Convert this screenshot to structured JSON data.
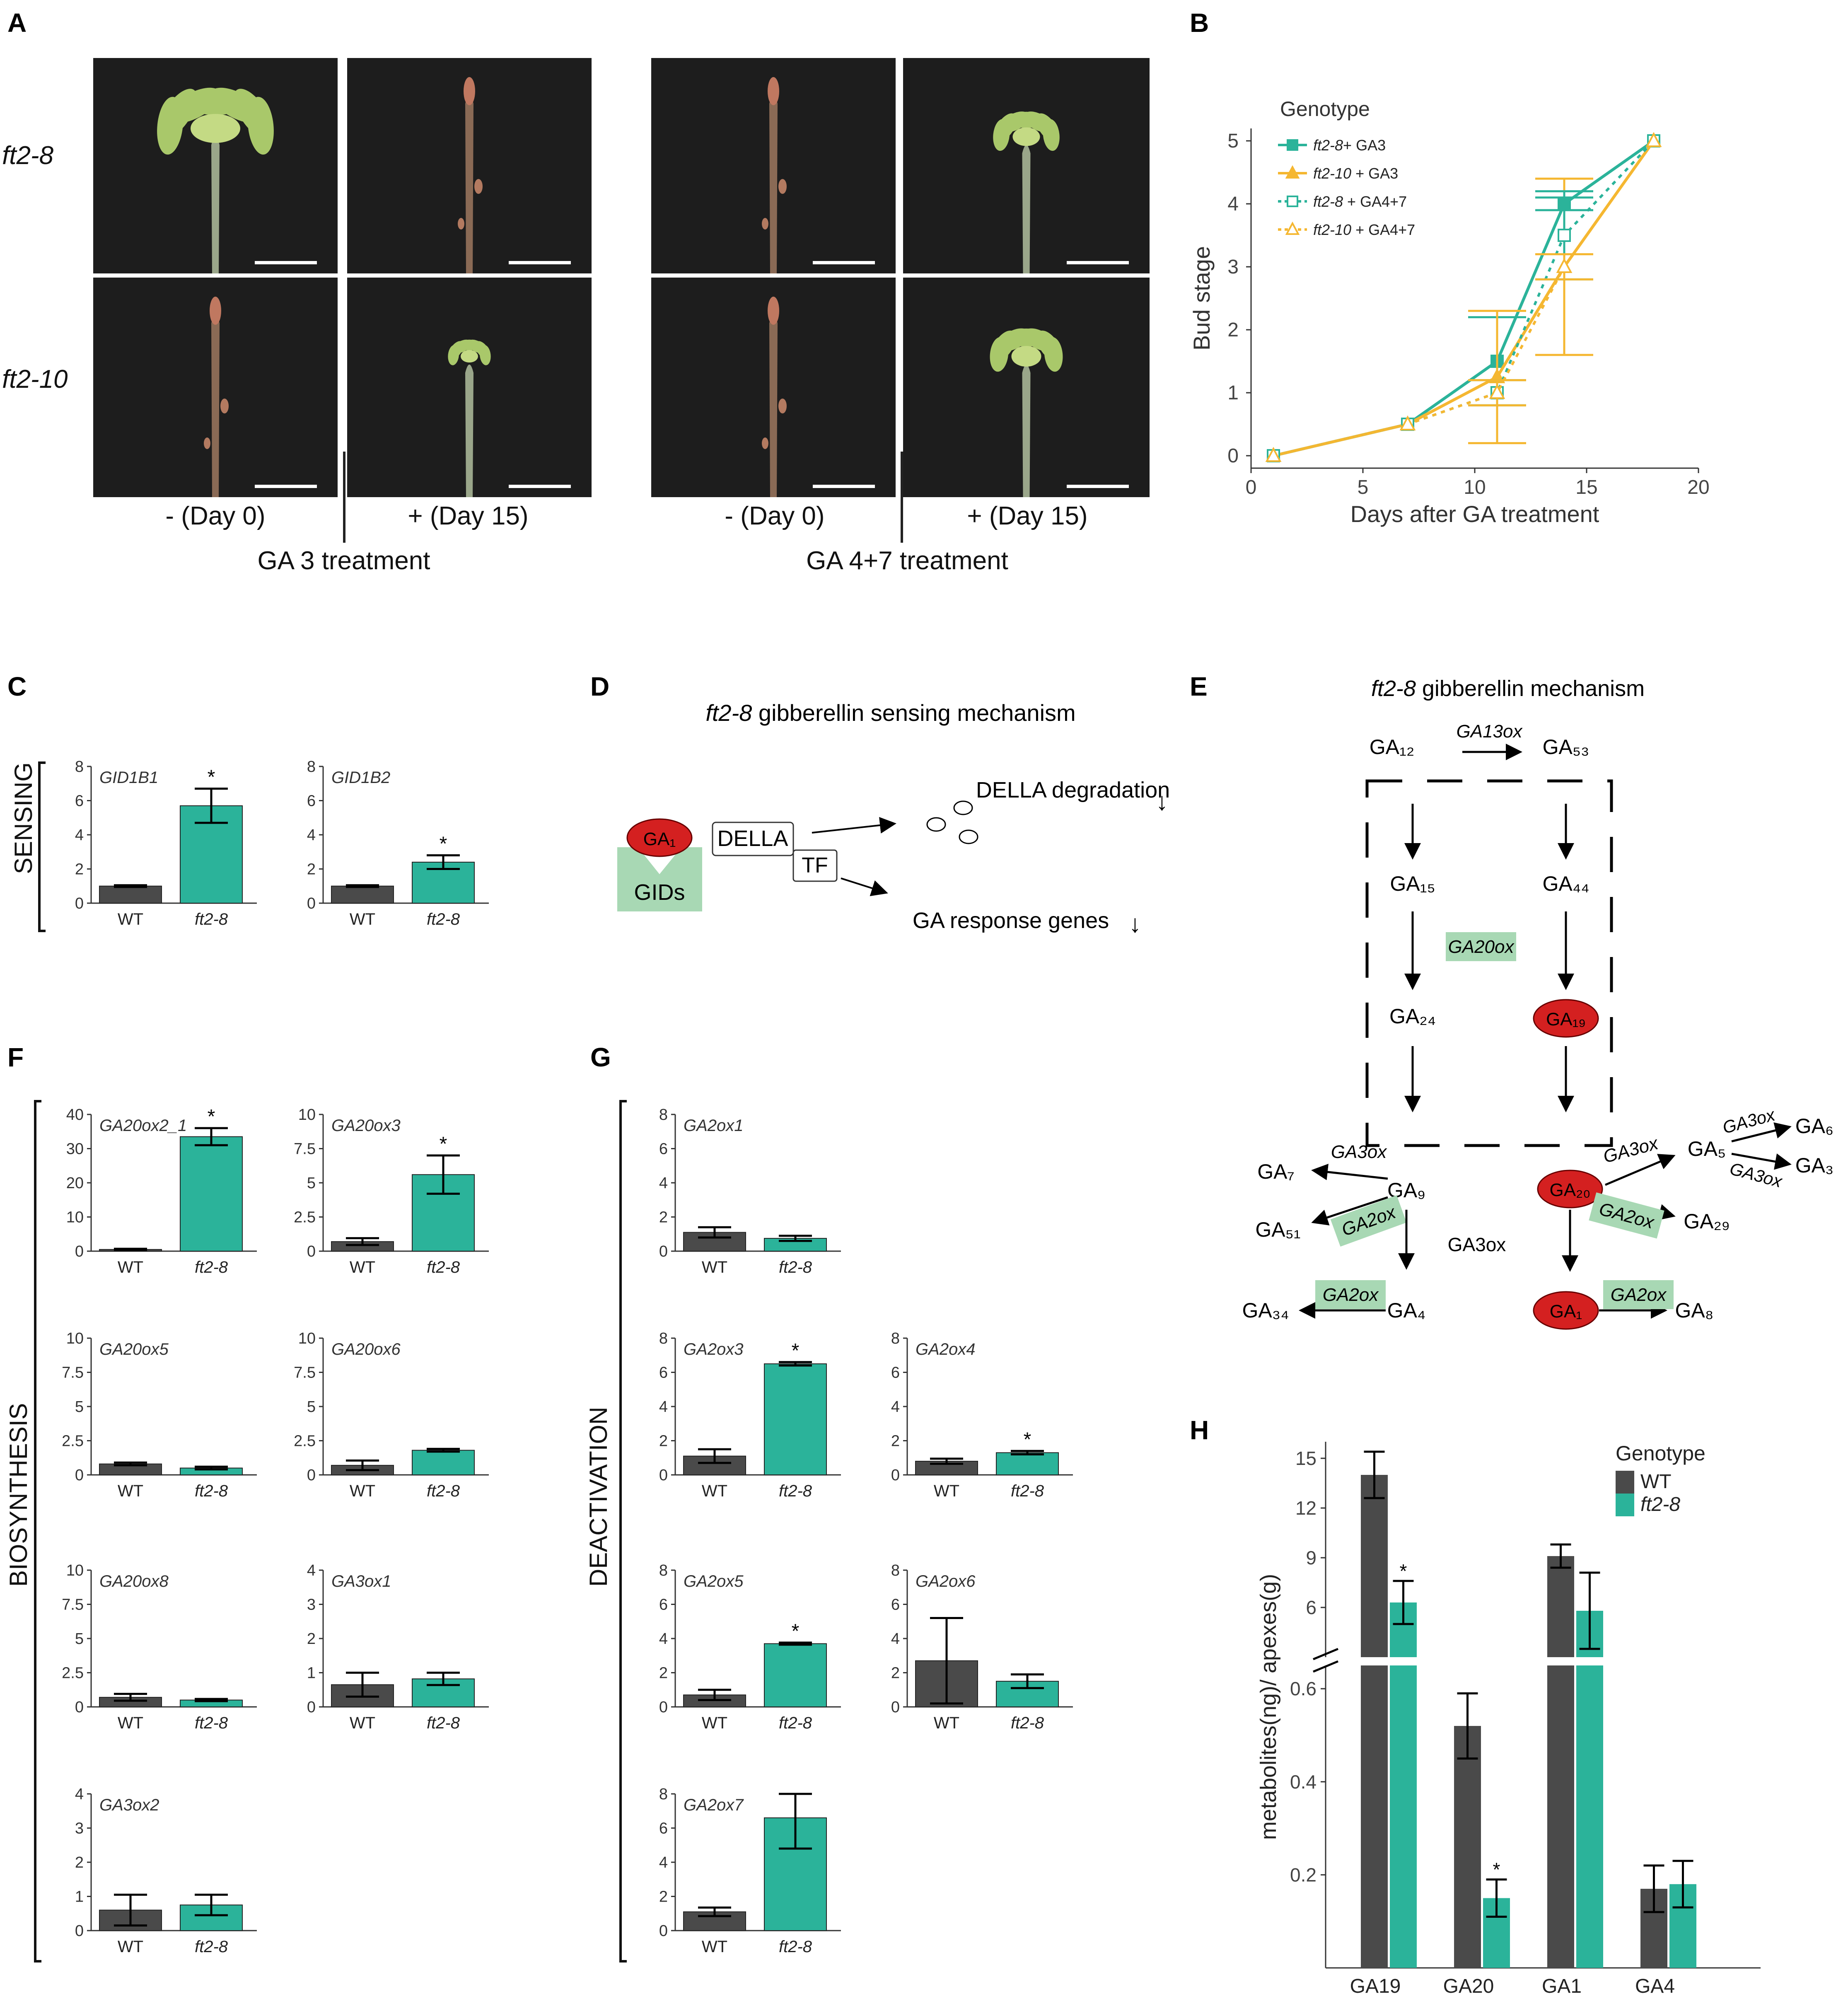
{
  "panels": {
    "A": "A",
    "B": "B",
    "C": "C",
    "D": "D",
    "E": "E",
    "F": "F",
    "G": "G",
    "H": "H"
  },
  "panelA": {
    "rows": [
      "ft2-8",
      "ft2-10"
    ],
    "conditions": [
      "- (Day 0)",
      "+ (Day 15)",
      "- (Day 0)",
      "+ (Day 15)"
    ],
    "treatments": [
      "GA 3 treatment",
      "GA 4+7 treatment"
    ]
  },
  "colors": {
    "wt": "#4a4a4a",
    "mut": "#2bb39a",
    "orange": "#f5b731",
    "red": "#d42020",
    "green_box": "#a8d8b4"
  },
  "chart_data": [
    {
      "panel": "B",
      "type": "line",
      "xlabel": "Days after GA treatment",
      "ylabel": "Bud stage",
      "xlim": [
        0,
        20
      ],
      "ylim": [
        0,
        5
      ],
      "xticks": [
        0,
        5,
        10,
        15,
        20
      ],
      "yticks": [
        0,
        1,
        2,
        3,
        4,
        5
      ],
      "legend_title": "Genotype",
      "legend_position": "top-left",
      "series": [
        {
          "name": "ft2-8+ GA3",
          "label_italic": "ft2-8",
          "label_rest": "+ GA3",
          "color": "#2bb39a",
          "marker": "square-filled",
          "dash": false,
          "x": [
            1,
            7,
            11,
            14,
            18
          ],
          "y": [
            0,
            0.5,
            1.5,
            4,
            5
          ],
          "err": [
            0,
            0,
            0.7,
            0.1,
            0
          ]
        },
        {
          "name": "ft2-10 + GA3",
          "label_italic": "ft2-10",
          "label_rest": " + GA3",
          "color": "#f5b731",
          "marker": "triangle-filled",
          "dash": false,
          "x": [
            1,
            7,
            11,
            14,
            18
          ],
          "y": [
            0,
            0.5,
            1.25,
            3,
            5
          ],
          "err": [
            0,
            0,
            1.05,
            1.4,
            0
          ]
        },
        {
          "name": "ft2-8 + GA4+7",
          "label_italic": "ft2-8",
          "label_rest": " + GA4+7",
          "color": "#2bb39a",
          "marker": "square-open",
          "dash": true,
          "x": [
            1,
            7,
            11,
            14,
            18
          ],
          "y": [
            0,
            0.5,
            1,
            3.5,
            5
          ],
          "err": [
            0,
            0,
            0.2,
            0.7,
            0
          ]
        },
        {
          "name": "ft2-10 + GA4+7",
          "label_italic": "ft2-10",
          "label_rest": " + GA4+7",
          "color": "#f5b731",
          "marker": "triangle-open",
          "dash": true,
          "x": [
            1,
            7,
            11,
            14,
            18
          ],
          "y": [
            0,
            0.5,
            1,
            3,
            5
          ],
          "err": [
            0,
            0,
            0.2,
            0.2,
            0
          ]
        }
      ]
    },
    {
      "panel": "C",
      "group": "SENSING",
      "type": "bar",
      "title": "GID1B1",
      "categories": [
        "WT",
        "ft2-8"
      ],
      "values": [
        1.0,
        5.7
      ],
      "err": [
        0.05,
        1.0
      ],
      "star": [
        false,
        true
      ],
      "ylim": [
        0,
        8
      ],
      "yticks": [
        0,
        2,
        4,
        6,
        8
      ]
    },
    {
      "panel": "C",
      "group": "SENSING",
      "type": "bar",
      "title": "GID1B2",
      "categories": [
        "WT",
        "ft2-8"
      ],
      "values": [
        1.0,
        2.4
      ],
      "err": [
        0.05,
        0.4
      ],
      "star": [
        false,
        true
      ],
      "ylim": [
        0,
        8
      ],
      "yticks": [
        0,
        2,
        4,
        6,
        8
      ]
    },
    {
      "panel": "F",
      "group": "BIOSYNTHESIS",
      "type": "bar",
      "title": "GA20ox2_1",
      "categories": [
        "WT",
        "ft2-8"
      ],
      "values": [
        0.5,
        33.5
      ],
      "err": [
        0.2,
        2.5
      ],
      "star": [
        false,
        true
      ],
      "ylim": [
        0,
        40
      ],
      "yticks": [
        0,
        10,
        20,
        30,
        40
      ]
    },
    {
      "panel": "F",
      "group": "BIOSYNTHESIS",
      "type": "bar",
      "title": "GA20ox3",
      "categories": [
        "WT",
        "ft2-8"
      ],
      "values": [
        0.7,
        5.6
      ],
      "err": [
        0.25,
        1.4
      ],
      "star": [
        false,
        true
      ],
      "ylim": [
        0,
        10
      ],
      "yticks": [
        0,
        2.5,
        5,
        7.5,
        10
      ]
    },
    {
      "panel": "F",
      "group": "BIOSYNTHESIS",
      "type": "bar",
      "title": "GA20ox5",
      "categories": [
        "WT",
        "ft2-8"
      ],
      "values": [
        0.8,
        0.5
      ],
      "err": [
        0.1,
        0.1
      ],
      "star": [
        false,
        false
      ],
      "ylim": [
        0,
        10
      ],
      "yticks": [
        0,
        2.5,
        5,
        7.5,
        10
      ]
    },
    {
      "panel": "F",
      "group": "BIOSYNTHESIS",
      "type": "bar",
      "title": "GA20ox6",
      "categories": [
        "WT",
        "ft2-8"
      ],
      "values": [
        0.7,
        1.8
      ],
      "err": [
        0.35,
        0.1
      ],
      "star": [
        false,
        false
      ],
      "ylim": [
        0,
        10
      ],
      "yticks": [
        0,
        2.5,
        5,
        7.5,
        10
      ]
    },
    {
      "panel": "F",
      "group": "BIOSYNTHESIS",
      "type": "bar",
      "title": "GA20ox8",
      "categories": [
        "WT",
        "ft2-8"
      ],
      "values": [
        0.7,
        0.5
      ],
      "err": [
        0.25,
        0.08
      ],
      "star": [
        false,
        false
      ],
      "ylim": [
        0,
        10
      ],
      "yticks": [
        0,
        2.5,
        5,
        7.5,
        10
      ]
    },
    {
      "panel": "F",
      "group": "BIOSYNTHESIS",
      "type": "bar",
      "title": "GA3ox1",
      "categories": [
        "WT",
        "ft2-8"
      ],
      "values": [
        0.65,
        0.82
      ],
      "err": [
        0.35,
        0.18
      ],
      "star": [
        false,
        false
      ],
      "ylim": [
        0,
        4
      ],
      "yticks": [
        0,
        1,
        2,
        3,
        4
      ]
    },
    {
      "panel": "F",
      "group": "BIOSYNTHESIS",
      "type": "bar",
      "title": "GA3ox2",
      "categories": [
        "WT",
        "ft2-8"
      ],
      "values": [
        0.6,
        0.75
      ],
      "err": [
        0.45,
        0.3
      ],
      "star": [
        false,
        false
      ],
      "ylim": [
        0,
        4
      ],
      "yticks": [
        0,
        1,
        2,
        3,
        4
      ]
    },
    {
      "panel": "G",
      "group": "DEACTIVATION",
      "type": "bar",
      "title": "GA2ox1",
      "categories": [
        "WT",
        "ft2-8"
      ],
      "values": [
        1.1,
        0.75
      ],
      "err": [
        0.3,
        0.15
      ],
      "star": [
        false,
        false
      ],
      "ylim": [
        0,
        8
      ],
      "yticks": [
        0,
        2,
        4,
        6,
        8
      ]
    },
    {
      "panel": "G",
      "group": "DEACTIVATION",
      "type": "bar",
      "title": "GA2ox3",
      "categories": [
        "WT",
        "ft2-8"
      ],
      "values": [
        1.1,
        6.5
      ],
      "err": [
        0.4,
        0.1
      ],
      "star": [
        false,
        true
      ],
      "ylim": [
        0,
        8
      ],
      "yticks": [
        0,
        2,
        4,
        6,
        8
      ]
    },
    {
      "panel": "G",
      "group": "DEACTIVATION",
      "type": "bar",
      "title": "GA2ox4",
      "categories": [
        "WT",
        "ft2-8"
      ],
      "values": [
        0.8,
        1.3
      ],
      "err": [
        0.15,
        0.1
      ],
      "star": [
        false,
        true
      ],
      "ylim": [
        0,
        8
      ],
      "yticks": [
        0,
        2,
        4,
        6,
        8
      ]
    },
    {
      "panel": "G",
      "group": "DEACTIVATION",
      "type": "bar",
      "title": "GA2ox5",
      "categories": [
        "WT",
        "ft2-8"
      ],
      "values": [
        0.7,
        3.7
      ],
      "err": [
        0.3,
        0.06
      ],
      "star": [
        false,
        true
      ],
      "ylim": [
        0,
        8
      ],
      "yticks": [
        0,
        2,
        4,
        6,
        8
      ]
    },
    {
      "panel": "G",
      "group": "DEACTIVATION",
      "type": "bar",
      "title": "GA2ox6",
      "categories": [
        "WT",
        "ft2-8"
      ],
      "values": [
        2.7,
        1.5
      ],
      "err": [
        2.5,
        0.4
      ],
      "star": [
        false,
        false
      ],
      "ylim": [
        0,
        8
      ],
      "yticks": [
        0,
        2,
        4,
        6,
        8
      ]
    },
    {
      "panel": "G",
      "group": "DEACTIVATION",
      "type": "bar",
      "title": "GA2ox7",
      "categories": [
        "WT",
        "ft2-8"
      ],
      "values": [
        1.1,
        6.6
      ],
      "err": [
        0.25,
        1.8
      ],
      "star": [
        false,
        false
      ],
      "ylim": [
        0,
        8
      ],
      "yticks": [
        0,
        2,
        4,
        6,
        8
      ]
    },
    {
      "panel": "H",
      "type": "bar",
      "ylabel": "metabolites(ng)/ apexes(g)",
      "categories": [
        "GA19",
        "GA20",
        "GA1",
        "GA4"
      ],
      "legend_title": "Genotype",
      "legend_position": "top-right",
      "series": [
        {
          "name": "WT",
          "values": [
            14.0,
            0.52,
            9.1,
            0.17
          ],
          "err": [
            1.4,
            0.07,
            0.7,
            0.05
          ],
          "star": [
            false,
            false,
            false,
            false
          ]
        },
        {
          "name": "ft2-8",
          "values": [
            6.3,
            0.15,
            5.8,
            0.18
          ],
          "err": [
            1.3,
            0.04,
            2.3,
            0.05
          ],
          "star": [
            true,
            true,
            false,
            false
          ]
        }
      ],
      "axis_break": true,
      "upper_ylim": [
        3,
        16
      ],
      "upper_yticks": [
        6,
        9,
        12,
        15
      ],
      "lower_ylim": [
        0,
        0.65
      ],
      "lower_yticks": [
        0.2,
        0.4,
        0.6
      ]
    }
  ],
  "groupLabels": {
    "sensing": "SENSING",
    "biosynthesis": "BIOSYNTHESIS",
    "deactivation": "DEACTIVATION"
  },
  "panelD": {
    "title_italic": "ft2-8",
    "title_rest": " gibberellin sensing mechanism",
    "ga1": "GA₁",
    "gids": "GIDs",
    "della": "DELLA",
    "tf": "TF",
    "della_degradation": "DELLA\ndegradation",
    "response": "GA response genes",
    "down": "↓"
  },
  "panelE": {
    "title_italic": "ft2-8",
    "title_rest": " gibberellin mechanism",
    "GA12": "GA₁₂",
    "GA53": "GA₅₃",
    "GA13ox": "GA13ox",
    "GA15": "GA₁₅",
    "GA44": "GA₄₄",
    "GA20ox": "GA20ox",
    "GA24": "GA₂₄",
    "GA19": "GA₁₉",
    "GA9": "GA₉",
    "GA20": "GA₂₀",
    "GA7": "GA₇",
    "GA51": "GA₅₁",
    "GA4": "GA₄",
    "GA34": "GA₃₄",
    "GA1": "GA₁",
    "GA8": "GA₈",
    "GA5": "GA₅",
    "GA6": "GA₆",
    "GA3": "GA₃",
    "GA29": "GA₂₉",
    "GA3ox": "GA3ox",
    "GA2ox": "GA2ox"
  }
}
